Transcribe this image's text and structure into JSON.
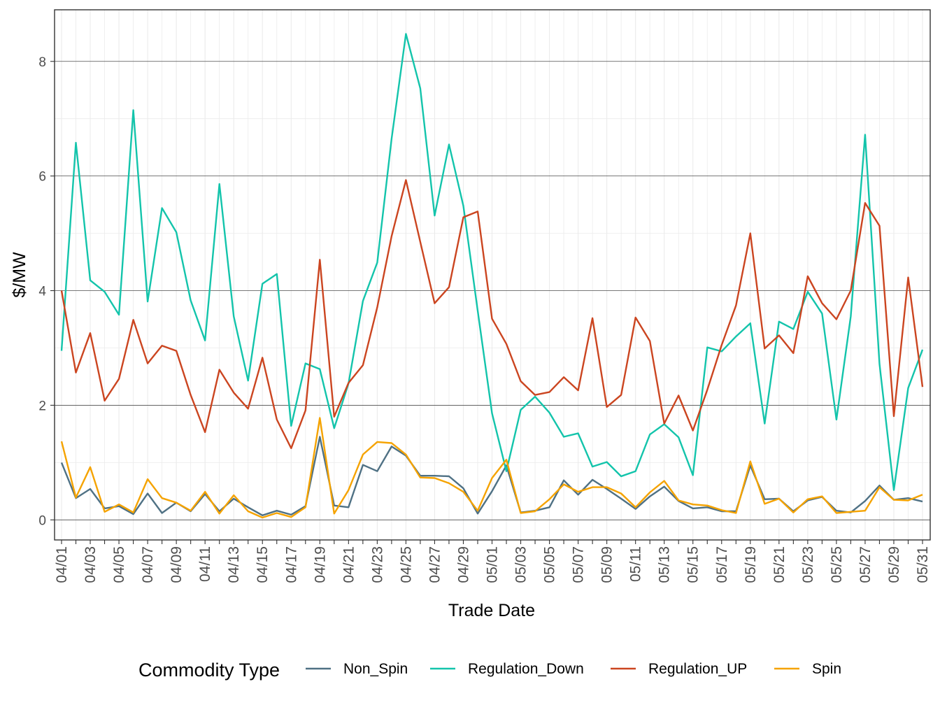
{
  "chart_data": {
    "type": "line",
    "xlabel": "Trade Date",
    "ylabel": "$/MW",
    "ylim": [
      -0.35,
      8.9
    ],
    "yticks": [
      0,
      2,
      4,
      6,
      8
    ],
    "grid": true,
    "legend_position": "bottom",
    "legend_title": "Commodity Type",
    "x": [
      "04/01",
      "04/02",
      "04/03",
      "04/04",
      "04/05",
      "04/06",
      "04/07",
      "04/08",
      "04/09",
      "04/10",
      "04/11",
      "04/12",
      "04/13",
      "04/14",
      "04/15",
      "04/16",
      "04/17",
      "04/18",
      "04/19",
      "04/20",
      "04/21",
      "04/22",
      "04/23",
      "04/24",
      "04/25",
      "04/26",
      "04/27",
      "04/28",
      "04/29",
      "04/30",
      "05/01",
      "05/02",
      "05/03",
      "05/04",
      "05/05",
      "05/06",
      "05/07",
      "05/08",
      "05/09",
      "05/10",
      "05/11",
      "05/12",
      "05/13",
      "05/14",
      "05/15",
      "05/16",
      "05/17",
      "05/18",
      "05/19",
      "05/20",
      "05/21",
      "05/22",
      "05/23",
      "05/24",
      "05/25",
      "05/26",
      "05/27",
      "05/28",
      "05/29",
      "05/30",
      "05/31"
    ],
    "xtick_labels": [
      "04/01",
      "04/03",
      "04/05",
      "04/07",
      "04/09",
      "04/11",
      "04/13",
      "04/15",
      "04/17",
      "04/19",
      "04/21",
      "04/23",
      "04/25",
      "04/27",
      "04/29",
      "05/01",
      "05/03",
      "05/05",
      "05/07",
      "05/09",
      "05/11",
      "05/13",
      "05/15",
      "05/17",
      "05/19",
      "05/21",
      "05/23",
      "05/25",
      "05/27",
      "05/29",
      "05/31"
    ],
    "series": [
      {
        "name": "Non_Spin",
        "color": "#4f7184",
        "values": [
          1.0,
          0.38,
          0.54,
          0.2,
          0.24,
          0.1,
          0.46,
          0.12,
          0.3,
          0.15,
          0.45,
          0.15,
          0.37,
          0.22,
          0.08,
          0.16,
          0.09,
          0.24,
          1.45,
          0.25,
          0.22,
          0.96,
          0.85,
          1.28,
          1.12,
          0.77,
          0.77,
          0.76,
          0.55,
          0.11,
          0.5,
          0.95,
          0.13,
          0.16,
          0.22,
          0.69,
          0.44,
          0.7,
          0.54,
          0.37,
          0.19,
          0.41,
          0.58,
          0.33,
          0.2,
          0.22,
          0.15,
          0.15,
          0.95,
          0.36,
          0.37,
          0.15,
          0.34,
          0.4,
          0.16,
          0.13,
          0.33,
          0.6,
          0.35,
          0.38,
          0.32
        ]
      },
      {
        "name": "Regulation_Down",
        "color": "#13c4ab",
        "values": [
          2.95,
          6.58,
          4.18,
          3.98,
          3.58,
          7.15,
          3.81,
          5.44,
          5.02,
          3.83,
          3.13,
          5.86,
          3.55,
          2.43,
          4.12,
          4.29,
          1.64,
          2.73,
          2.63,
          1.6,
          2.38,
          3.82,
          4.49,
          6.65,
          8.48,
          7.53,
          5.31,
          6.55,
          5.48,
          3.65,
          1.86,
          0.85,
          1.92,
          2.15,
          1.87,
          1.45,
          1.51,
          0.93,
          1.01,
          0.76,
          0.85,
          1.49,
          1.67,
          1.44,
          0.78,
          3.01,
          2.94,
          3.2,
          3.43,
          1.68,
          3.46,
          3.33,
          3.98,
          3.6,
          1.75,
          3.55,
          6.72,
          2.72,
          0.52,
          2.3,
          2.97
        ]
      },
      {
        "name": "Regulation_UP",
        "color": "#cb4520",
        "values": [
          4.0,
          2.57,
          3.26,
          2.08,
          2.46,
          3.49,
          2.73,
          3.04,
          2.95,
          2.18,
          1.53,
          2.62,
          2.22,
          1.94,
          2.83,
          1.75,
          1.25,
          1.91,
          4.54,
          1.8,
          2.39,
          2.7,
          3.71,
          4.95,
          5.93,
          4.85,
          3.78,
          4.06,
          5.28,
          5.38,
          3.51,
          3.07,
          2.42,
          2.18,
          2.23,
          2.49,
          2.26,
          3.52,
          1.97,
          2.18,
          3.53,
          3.12,
          1.68,
          2.17,
          1.56,
          2.27,
          3.05,
          3.74,
          5.0,
          2.99,
          3.22,
          2.91,
          4.25,
          3.78,
          3.5,
          4.0,
          5.53,
          5.13,
          1.81,
          4.23,
          2.32
        ]
      },
      {
        "name": "Spin",
        "color": "#f5a300",
        "values": [
          1.37,
          0.39,
          0.92,
          0.14,
          0.27,
          0.13,
          0.71,
          0.38,
          0.3,
          0.16,
          0.49,
          0.11,
          0.43,
          0.15,
          0.04,
          0.12,
          0.05,
          0.22,
          1.78,
          0.11,
          0.52,
          1.14,
          1.36,
          1.34,
          1.14,
          0.74,
          0.73,
          0.64,
          0.49,
          0.16,
          0.73,
          1.05,
          0.12,
          0.15,
          0.36,
          0.62,
          0.49,
          0.57,
          0.57,
          0.46,
          0.22,
          0.48,
          0.68,
          0.34,
          0.27,
          0.25,
          0.17,
          0.12,
          1.02,
          0.28,
          0.37,
          0.13,
          0.36,
          0.41,
          0.12,
          0.14,
          0.16,
          0.57,
          0.35,
          0.34,
          0.44
        ]
      }
    ]
  }
}
